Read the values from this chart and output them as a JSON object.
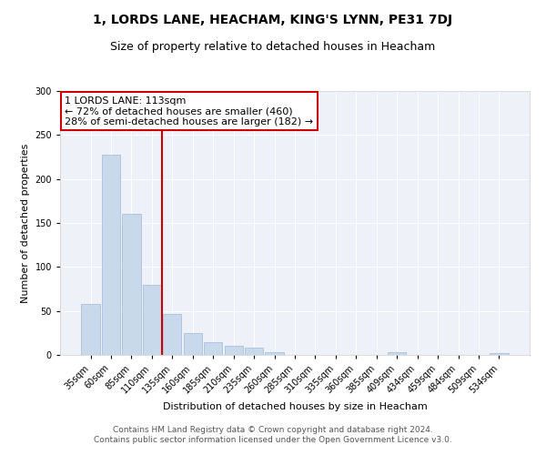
{
  "title": "1, LORDS LANE, HEACHAM, KING'S LYNN, PE31 7DJ",
  "subtitle": "Size of property relative to detached houses in Heacham",
  "xlabel": "Distribution of detached houses by size in Heacham",
  "ylabel": "Number of detached properties",
  "categories": [
    "35sqm",
    "60sqm",
    "85sqm",
    "110sqm",
    "135sqm",
    "160sqm",
    "185sqm",
    "210sqm",
    "235sqm",
    "260sqm",
    "285sqm",
    "310sqm",
    "335sqm",
    "360sqm",
    "385sqm",
    "409sqm",
    "434sqm",
    "459sqm",
    "484sqm",
    "509sqm",
    "534sqm"
  ],
  "values": [
    58,
    228,
    160,
    80,
    47,
    25,
    15,
    10,
    8,
    3,
    0,
    0,
    0,
    0,
    0,
    3,
    0,
    0,
    0,
    0,
    2
  ],
  "bar_color": "#c8d9ec",
  "bar_edge_color": "#a0b8d8",
  "vline_color": "#cc0000",
  "vline_x": 3.5,
  "annotation_text": "1 LORDS LANE: 113sqm\n← 72% of detached houses are smaller (460)\n28% of semi-detached houses are larger (182) →",
  "annotation_box_color": "#ffffff",
  "annotation_box_edge": "#cc0000",
  "ylim": [
    0,
    300
  ],
  "yticks": [
    0,
    50,
    100,
    150,
    200,
    250,
    300
  ],
  "bg_color": "#eef2f8",
  "footer_text": "Contains HM Land Registry data © Crown copyright and database right 2024.\nContains public sector information licensed under the Open Government Licence v3.0.",
  "title_fontsize": 10,
  "subtitle_fontsize": 9,
  "axis_label_fontsize": 8,
  "tick_fontsize": 7,
  "annotation_fontsize": 8,
  "footer_fontsize": 6.5
}
